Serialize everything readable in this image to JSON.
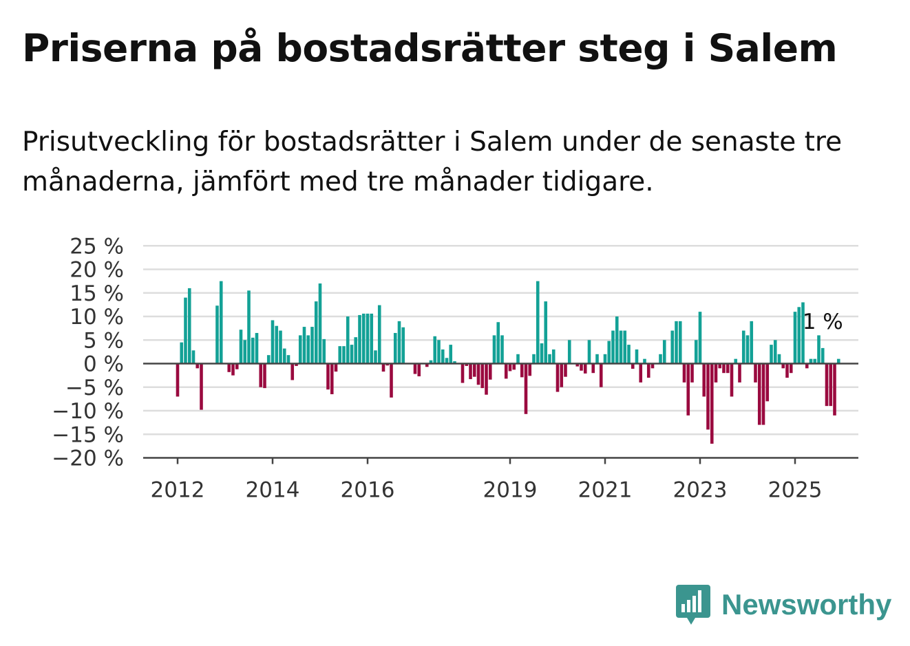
{
  "title": "Priserna på bostadsrätter steg i Salem",
  "subtitle": "Prisutveckling för bostadsrätter i Salem under de senaste tre månaderna, jämfört med tre månader tidigare.",
  "brand": {
    "name": "Newsworthy",
    "icon": "newsworthy-logo-icon",
    "color": "#3b958f"
  },
  "chart_data": {
    "type": "bar",
    "title": "Priserna på bostadsrätter steg i Salem",
    "ylim": [
      -20,
      25
    ],
    "ytick_values": [
      25,
      20,
      15,
      10,
      5,
      0,
      -5,
      -10,
      -15,
      -20
    ],
    "ytick_labels": [
      "25 %",
      "20 %",
      "15 %",
      "10 %",
      "5 %",
      "0 %",
      "−5 %",
      "−10 %",
      "−15 %",
      "−20 %"
    ],
    "x_start": "2012-01",
    "x_interval": "month",
    "xtick_labels": [
      {
        "label": "2012",
        "month_index": 0
      },
      {
        "label": "2014",
        "month_index": 24
      },
      {
        "label": "2016",
        "month_index": 48
      },
      {
        "label": "2019",
        "month_index": 84
      },
      {
        "label": "2021",
        "month_index": 108
      },
      {
        "label": "2023",
        "month_index": 132
      },
      {
        "label": "2025",
        "month_index": 156
      }
    ],
    "positive_color": "#13a196",
    "negative_color": "#9a0a3f",
    "grid": true,
    "annotation": {
      "label": "1 %",
      "month_index": 163
    },
    "values": [
      -7,
      4.5,
      14,
      16,
      2.8,
      -1,
      -9.8,
      null,
      null,
      null,
      12.3,
      17.5,
      null,
      -1.8,
      -2.5,
      -1.2,
      7.2,
      5,
      15.5,
      5.5,
      6.5,
      -5,
      -5.2,
      1.8,
      9.2,
      8,
      7,
      3.2,
      1.8,
      -3.5,
      -0.5,
      6,
      7.8,
      6,
      7.8,
      13.2,
      17,
      5.2,
      -5.5,
      -6.5,
      -1.7,
      3.7,
      3.7,
      10,
      4,
      5.6,
      10.3,
      10.6,
      10.6,
      10.6,
      2.8,
      12.4,
      -1.7,
      -0.4,
      -7.2,
      6.5,
      9,
      7.7,
      null,
      null,
      -2.2,
      -2.7,
      null,
      -0.7,
      0.7,
      5.8,
      5,
      3,
      1.2,
      4,
      0.5,
      null,
      -4.1,
      -0.5,
      -3.3,
      -2.8,
      -4.5,
      -5.2,
      -6.6,
      -3.4,
      6,
      8.8,
      6,
      -3.2,
      -1.6,
      -1.3,
      2,
      -2.9,
      -10.7,
      -2.6,
      2,
      17.5,
      4.3,
      13.2,
      2,
      3,
      -6,
      -5,
      -2.8,
      5,
      null,
      -0.6,
      -1.5,
      -2.1,
      5,
      -2,
      2,
      -5,
      2,
      4.8,
      7,
      10,
      7,
      7,
      4,
      -1.1,
      3,
      -4,
      1,
      -3,
      -1,
      null,
      2,
      5,
      null,
      7,
      9,
      9,
      -4,
      -11,
      -4,
      5,
      11,
      -7,
      -14,
      -17,
      -4,
      -1,
      -2,
      -2,
      -7,
      1,
      -4,
      7,
      6,
      9,
      -4,
      -13,
      -13,
      -8,
      4,
      5,
      2,
      -1,
      -3,
      -2,
      11,
      12,
      13,
      -1,
      1,
      1,
      6,
      3.3,
      -9,
      -9,
      -11,
      1
    ]
  }
}
